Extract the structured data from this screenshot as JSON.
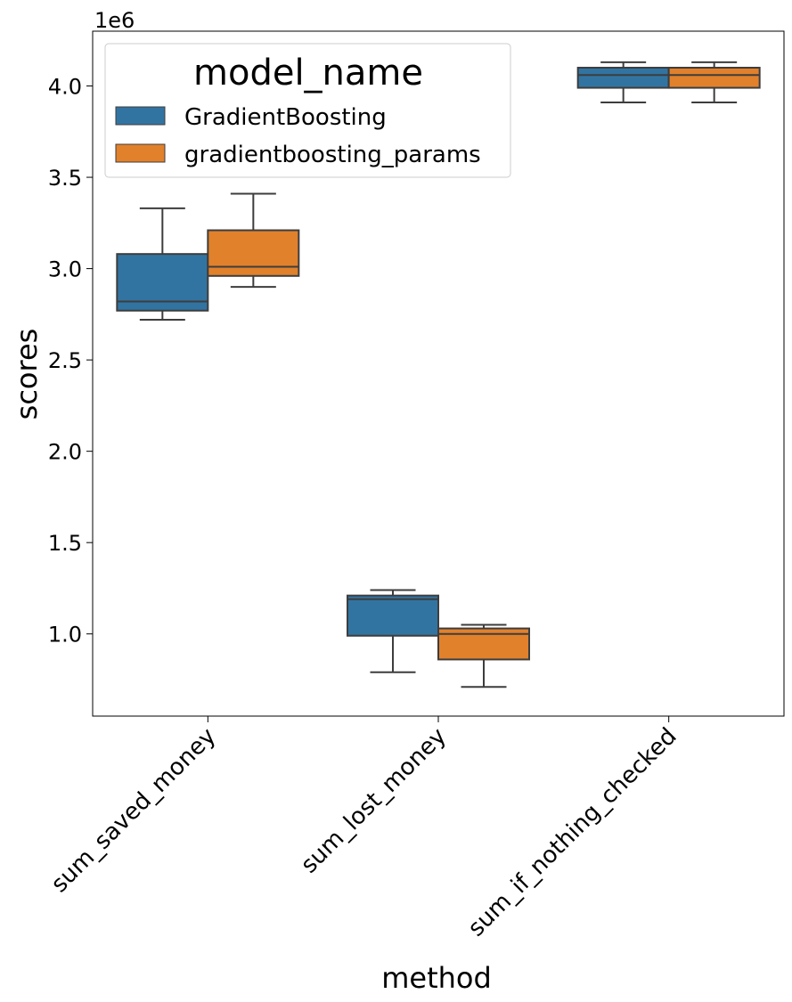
{
  "chart_data": {
    "type": "box",
    "xlabel": "method",
    "ylabel": "scores",
    "offset_label": "1e6",
    "ylim": [
      0.55,
      4.3
    ],
    "yticks": [
      1.0,
      1.5,
      2.0,
      2.5,
      3.0,
      3.5,
      4.0
    ],
    "ytick_labels": [
      "1.0",
      "1.5",
      "2.0",
      "2.5",
      "3.0",
      "3.5",
      "4.0"
    ],
    "categories": [
      "sum_saved_money",
      "sum_lost_money",
      "sum_if_nothing_checked"
    ],
    "legend": {
      "title": "model_name",
      "placement": "upper-left"
    },
    "grid": false,
    "series": [
      {
        "name": "GradientBoosting",
        "color": "#3274a1",
        "boxes": [
          {
            "min": 2.72,
            "q1": 2.77,
            "median": 2.82,
            "q3": 3.08,
            "max": 3.33
          },
          {
            "min": 0.79,
            "q1": 0.99,
            "median": 1.19,
            "q3": 1.21,
            "max": 1.24
          },
          {
            "min": 3.91,
            "q1": 3.99,
            "median": 4.06,
            "q3": 4.1,
            "max": 4.13
          }
        ]
      },
      {
        "name": "gradientboosting_params",
        "color": "#e1812c",
        "boxes": [
          {
            "min": 2.9,
            "q1": 2.96,
            "median": 3.01,
            "q3": 3.21,
            "max": 3.41
          },
          {
            "min": 0.71,
            "q1": 0.86,
            "median": 1.0,
            "q3": 1.03,
            "max": 1.05
          },
          {
            "min": 3.91,
            "q1": 3.99,
            "median": 4.06,
            "q3": 4.1,
            "max": 4.13
          }
        ]
      }
    ]
  }
}
